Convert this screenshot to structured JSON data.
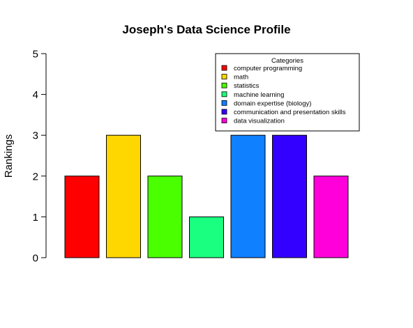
{
  "chart_data": {
    "type": "bar",
    "title": "Joseph's Data Science Profile",
    "xlabel": "",
    "ylabel": "Rankings",
    "ylim": [
      0,
      5
    ],
    "yticks": [
      0,
      1,
      2,
      3,
      4,
      5
    ],
    "categories": [
      "computer programming",
      "math",
      "statistics",
      "machine learning",
      "domain expertise (biology)",
      "communication and presentation skills",
      "data visualization"
    ],
    "values": [
      2,
      3,
      2,
      1,
      3,
      3,
      2
    ],
    "colors": [
      "#FF0000",
      "#FFD700",
      "#49FF00",
      "#1BFF80",
      "#0F80FF",
      "#3300FF",
      "#FF00DB"
    ],
    "legend": {
      "title": "Categories",
      "position": "top-right",
      "entries": [
        "computer programming",
        "math",
        "statistics",
        "machine learning",
        "domain expertise (biology)",
        "communication and presentation skills",
        "data visualization"
      ]
    },
    "grid": false
  }
}
